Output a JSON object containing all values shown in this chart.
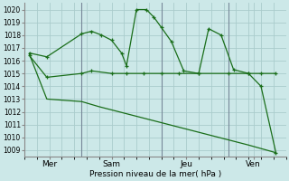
{
  "title": "Pression niveau de la mer( hPa )",
  "background_color": "#cce8e8",
  "grid_color": "#aacccc",
  "line_color": "#1a6e1a",
  "ylim": [
    1008.5,
    1020.5
  ],
  "yticks": [
    1009,
    1010,
    1011,
    1012,
    1013,
    1014,
    1015,
    1016,
    1017,
    1018,
    1019,
    1020
  ],
  "xlim": [
    0,
    10.5
  ],
  "x_tick_positions": [
    1.0,
    3.5,
    6.5,
    9.2
  ],
  "x_tick_labels": [
    "Mer",
    "Sam",
    "Jeu",
    "Ven"
  ],
  "vline_positions": [
    2.3,
    5.5,
    8.2
  ],
  "line1_x": [
    0.2,
    0.9,
    2.3,
    2.7,
    3.1,
    3.5,
    3.9,
    4.1,
    4.5,
    4.9,
    5.2,
    5.5,
    5.9,
    6.4,
    7.0,
    7.4,
    7.9,
    8.4,
    9.0,
    9.5,
    10.1
  ],
  "line1_y": [
    1016.6,
    1016.3,
    1018.1,
    1018.3,
    1018.0,
    1017.6,
    1016.6,
    1015.6,
    1020.0,
    1020.0,
    1019.4,
    1018.6,
    1017.5,
    1015.2,
    1015.0,
    1018.5,
    1018.0,
    1015.3,
    1015.0,
    1014.0,
    1008.8
  ],
  "line2_x": [
    0.2,
    0.9,
    2.3,
    2.7,
    3.5,
    4.1,
    4.8,
    5.5,
    6.2,
    7.0,
    8.2,
    9.0,
    9.5,
    10.1
  ],
  "line2_y": [
    1016.4,
    1014.7,
    1015.0,
    1015.2,
    1015.0,
    1015.0,
    1015.0,
    1015.0,
    1015.0,
    1015.0,
    1015.0,
    1015.0,
    1015.0,
    1015.0
  ],
  "line3_x": [
    0.2,
    0.9,
    2.3,
    3.0,
    4.0,
    5.0,
    6.0,
    7.0,
    8.0,
    9.0,
    10.1
  ],
  "line3_y": [
    1016.5,
    1013.0,
    1012.8,
    1012.4,
    1011.9,
    1011.4,
    1010.9,
    1010.4,
    1009.9,
    1009.4,
    1008.8
  ]
}
